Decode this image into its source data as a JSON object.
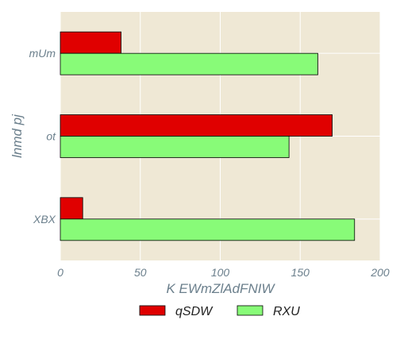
{
  "chart_data": {
    "type": "bar",
    "orientation": "horizontal",
    "title": "",
    "xlabel": "K EWmZlAdFNIW",
    "ylabel": "lnmd pj",
    "categories": [
      "XBX",
      "ot",
      "mUm"
    ],
    "series": [
      {
        "name": "qSDW",
        "color": "#e00000",
        "values": [
          14,
          170,
          38
        ]
      },
      {
        "name": "RXU",
        "color": "#88fb78",
        "values": [
          184,
          143,
          161
        ]
      }
    ],
    "xlim": [
      0,
      200
    ],
    "xticks": [
      "0",
      "50",
      "100",
      "150",
      "200"
    ],
    "grid": true,
    "legend_position": "bottom-center",
    "background_color": "#efe8d5",
    "grid_color": "#ffffff",
    "label_color": "#6b7f8c"
  }
}
